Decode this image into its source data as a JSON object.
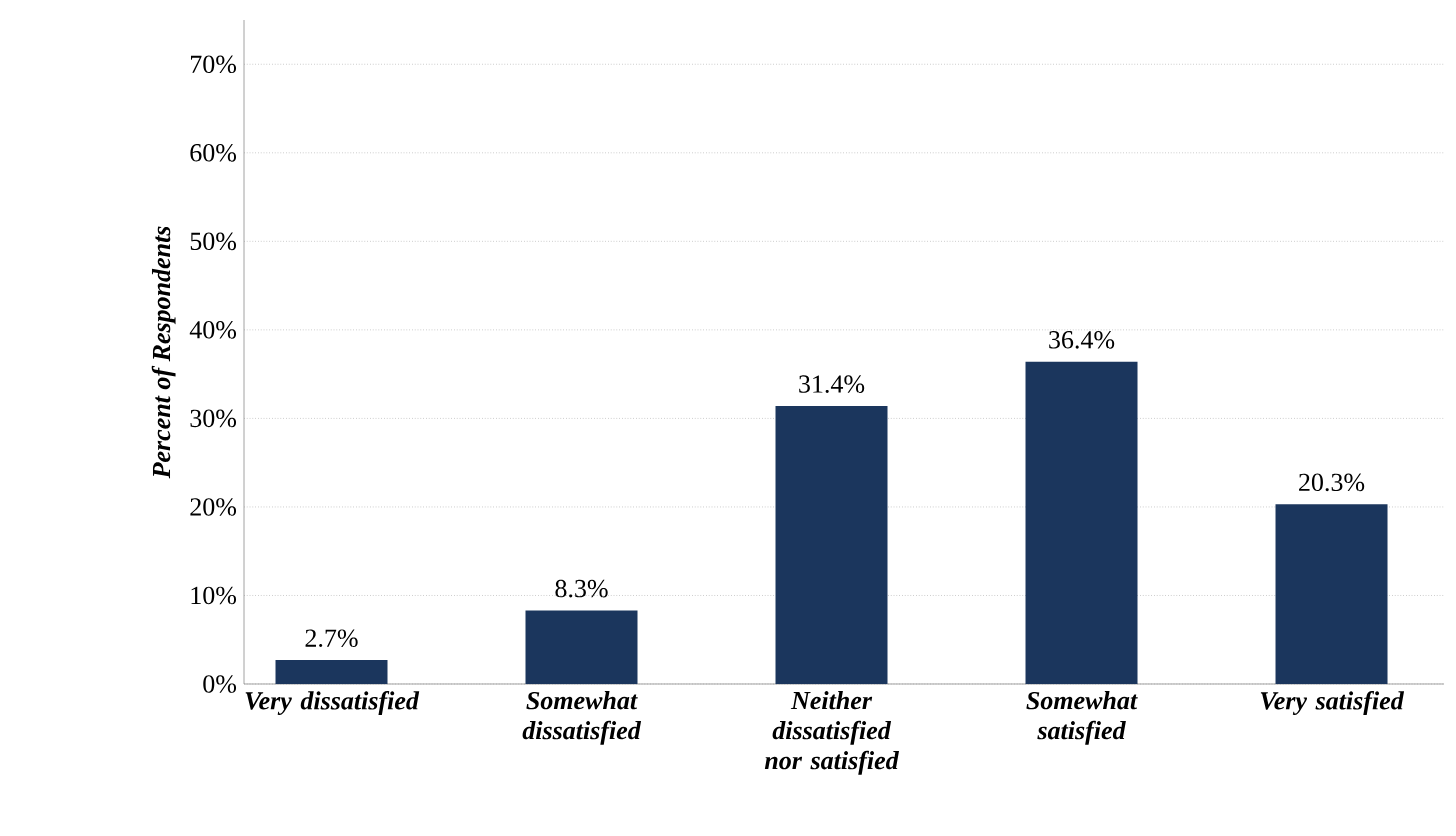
{
  "chart_data": {
    "type": "bar",
    "ylabel": "Percent of Respondents",
    "categories": [
      "Very dissatisfied",
      "Somewhat dissatisfied",
      "Neither dissatisfied nor satisfied",
      "Somewhat satisfied",
      "Very satisfied"
    ],
    "values": [
      2.7,
      8.3,
      31.4,
      36.4,
      20.3
    ],
    "value_labels": [
      "2.7%",
      "8.3%",
      "31.4%",
      "36.4%",
      "20.3%"
    ],
    "color": "#1b365d",
    "ylim": [
      0,
      75
    ],
    "yticks": [
      {
        "value": 0,
        "label": "0%"
      },
      {
        "value": 10,
        "label": "10%"
      },
      {
        "value": 20,
        "label": "20%"
      },
      {
        "value": 30,
        "label": "30%"
      },
      {
        "value": 40,
        "label": "40%"
      },
      {
        "value": 50,
        "label": "50%"
      },
      {
        "value": 60,
        "label": "60%"
      },
      {
        "value": 70,
        "label": "70%"
      }
    ],
    "grid": "y"
  }
}
